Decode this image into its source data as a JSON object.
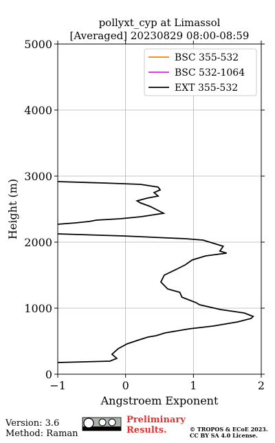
{
  "chart_data": {
    "type": "line",
    "title": "pollyxt_cyp at Limassol",
    "subtitle": "[Averaged] 20230829 08:00-08:59",
    "x_label": "Angstroem Exponent",
    "y_label": "Height (m)",
    "xlim": [
      -1,
      2
    ],
    "xticks": [
      {
        "value": -1,
        "label": "−1"
      },
      0,
      1,
      2
    ],
    "ylim": [
      0,
      5000
    ],
    "yticks": [
      0,
      1000,
      2000,
      3000,
      4000,
      5000
    ],
    "grid": true,
    "legend": "upper right",
    "series": [
      {
        "name": "BSC 355-532",
        "color": "#ff7f0e",
        "x": [],
        "values": []
      },
      {
        "name": "BSC 532-1064",
        "color": "#e020e0",
        "x": [],
        "values": []
      },
      {
        "name": "EXT 355-532",
        "color": "#000000",
        "x": [
          -1,
          -0.23,
          -0.13,
          -0.2,
          -0.11,
          0.02,
          0.17,
          0.33,
          0.45,
          0.58,
          0.94,
          1.29,
          1.65,
          1.85,
          1.88,
          1.75,
          1.4,
          1.09,
          1.04,
          0.83,
          0.8,
          0.62,
          0.52,
          0.57,
          0.78,
          0.88,
          0.98,
          1.18,
          1.49,
          1.39,
          1.44,
          1.24,
          1.14,
          0.88,
          -0.03,
          -1,
          null,
          -1,
          -0.74,
          -0.54,
          -0.43,
          -0.08,
          0.23,
          0.56,
          0.46,
          0.36,
          0.22,
          0.17,
          0.32,
          0.48,
          0.42,
          0.51,
          0.48,
          0.22,
          -0.33,
          -1
        ],
        "values": [
          177,
          198,
          240,
          302,
          385,
          458,
          510,
          563,
          583,
          625,
          688,
          729,
          792,
          844,
          875,
          927,
          979,
          1052,
          1083,
          1167,
          1240,
          1292,
          1396,
          1500,
          1604,
          1656,
          1729,
          1792,
          1833,
          1865,
          1938,
          2000,
          2031,
          2052,
          2094,
          2125,
          null,
          2271,
          2292,
          2313,
          2333,
          2354,
          2385,
          2438,
          2490,
          2542,
          2594,
          2625,
          2667,
          2698,
          2750,
          2792,
          2833,
          2875,
          2896,
          2917
        ]
      }
    ]
  },
  "footer": {
    "version": "Version: 3.6",
    "method": "Method: Raman",
    "preliminary": [
      "Preliminary",
      "Results."
    ],
    "license": [
      "© TROPOS & ECoE 2023.",
      "CC BY SA 4.0 License."
    ]
  }
}
